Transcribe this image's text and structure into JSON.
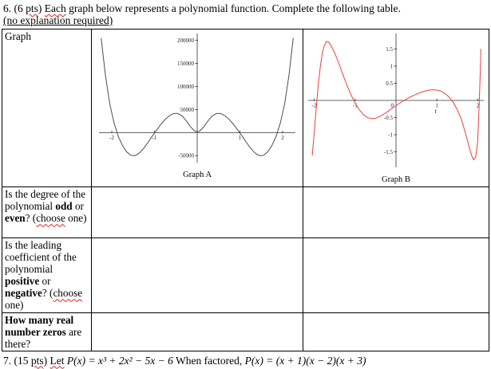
{
  "colors": {
    "graph_a_curve": "#4d4d4d",
    "graph_b_curve": "#e94040",
    "axis": "#333333",
    "squiggle": "#e02020"
  },
  "question6": {
    "s1": "6. (6 ",
    "s2": "pts",
    "s3": ") ",
    "s4": "Each",
    "s5": " graph below represents a polynomial function. Complete the following table.",
    "s6": "(no explanation required)"
  },
  "table": {
    "row_graph_label": "Graph",
    "row_degree": {
      "s1": "Is the degree of the polynomial ",
      "s2": "odd",
      "s3": " or ",
      "s4": "even",
      "s5": "? (",
      "s6": "choose",
      "s7": " one)"
    },
    "row_coeff": {
      "s1": "Is the leading coefficient of the polynomial ",
      "s2": "positive",
      "s3": " or ",
      "s4": "negative",
      "s5": "? (",
      "s6": "choose",
      "s7": " one)"
    },
    "row_zeros": {
      "s1": "How many real number zeros",
      "s2": " are there?"
    }
  },
  "question7": {
    "s1": "7. (15 ",
    "s2": "pts",
    "s3": ") ",
    "s4": "Let",
    "s5": " ",
    "math1": "P(x) = x³ + 2x² − 5x − 6",
    "s6": " When factored, ",
    "math2": "P(x) = (x + 1)(x − 2)(x + 3)"
  },
  "chart_data": [
    {
      "type": "line",
      "title": "Graph A",
      "xlabel": "",
      "ylabel": "",
      "xlim": [
        -2.3,
        2.3
      ],
      "ylim": [
        -65000,
        215000
      ],
      "grid": false,
      "xticks": [
        {
          "v": -2,
          "label": "-2"
        },
        {
          "v": -1,
          "label": "-1"
        },
        {
          "v": 1,
          "label": "1"
        },
        {
          "v": 2,
          "label": "2"
        }
      ],
      "yticks": [
        {
          "v": 200000,
          "label": "200000"
        },
        {
          "v": 150000,
          "label": "150000"
        },
        {
          "v": 100000,
          "label": "100000"
        },
        {
          "v": 50000,
          "label": "50000"
        },
        {
          "v": -50000,
          "label": "-50000"
        }
      ],
      "color": "#4d4d4d",
      "points": [
        [
          -2.25,
          205000
        ],
        [
          -2.15,
          125000
        ],
        [
          -2.05,
          63000
        ],
        [
          -1.95,
          22000
        ],
        [
          -1.85,
          -8000
        ],
        [
          -1.75,
          -28000
        ],
        [
          -1.65,
          -42000
        ],
        [
          -1.55,
          -49500
        ],
        [
          -1.45,
          -50000
        ],
        [
          -1.35,
          -44000
        ],
        [
          -1.25,
          -33500
        ],
        [
          -1.15,
          -21000
        ],
        [
          -1.05,
          -7500
        ],
        [
          -0.95,
          5500
        ],
        [
          -0.85,
          18000
        ],
        [
          -0.75,
          28500
        ],
        [
          -0.65,
          36500
        ],
        [
          -0.55,
          41500
        ],
        [
          -0.45,
          41500
        ],
        [
          -0.35,
          36000
        ],
        [
          -0.25,
          25000
        ],
        [
          -0.15,
          12000
        ],
        [
          -0.05,
          2500
        ],
        [
          0.05,
          2500
        ],
        [
          0.15,
          12000
        ],
        [
          0.25,
          25000
        ],
        [
          0.35,
          36000
        ],
        [
          0.45,
          41500
        ],
        [
          0.55,
          41500
        ],
        [
          0.65,
          36500
        ],
        [
          0.75,
          28500
        ],
        [
          0.85,
          18000
        ],
        [
          0.95,
          5500
        ],
        [
          1.05,
          -7500
        ],
        [
          1.15,
          -21000
        ],
        [
          1.25,
          -33500
        ],
        [
          1.35,
          -44000
        ],
        [
          1.45,
          -50000
        ],
        [
          1.55,
          -49500
        ],
        [
          1.65,
          -42000
        ],
        [
          1.75,
          -28000
        ],
        [
          1.85,
          -8000
        ],
        [
          1.95,
          22000
        ],
        [
          2.05,
          63000
        ],
        [
          2.15,
          125000
        ],
        [
          2.25,
          205000
        ]
      ]
    },
    {
      "type": "line",
      "title": "Graph B",
      "xlabel": "t",
      "ylabel": "",
      "xlim": [
        -2.15,
        2.15
      ],
      "ylim": [
        -1.95,
        1.95
      ],
      "grid": false,
      "xticks": [
        {
          "v": -2,
          "label": "-2"
        },
        {
          "v": -1,
          "label": "-1"
        },
        {
          "v": 0,
          "label": "0"
        },
        {
          "v": 1,
          "label": "1"
        },
        {
          "v": 2,
          "label": "2"
        }
      ],
      "yticks": [
        {
          "v": 1.5,
          "label": "1.5"
        },
        {
          "v": 1,
          "label": "1"
        },
        {
          "v": 0.5,
          "label": "0.5"
        },
        {
          "v": -0.5,
          "label": "-0.5"
        },
        {
          "v": -1,
          "label": "-1"
        },
        {
          "v": -1.5,
          "label": "-1.5"
        }
      ],
      "color": "#e94040",
      "axis_var_label": "t",
      "axis_var_x": 0.95,
      "points": [
        [
          -2.05,
          -1.6
        ],
        [
          -2.0,
          -0.9
        ],
        [
          -1.95,
          -0.2
        ],
        [
          -1.9,
          0.5
        ],
        [
          -1.85,
          1.0
        ],
        [
          -1.8,
          1.4
        ],
        [
          -1.75,
          1.62
        ],
        [
          -1.7,
          1.72
        ],
        [
          -1.65,
          1.7
        ],
        [
          -1.6,
          1.62
        ],
        [
          -1.5,
          1.38
        ],
        [
          -1.4,
          1.08
        ],
        [
          -1.3,
          0.75
        ],
        [
          -1.2,
          0.44
        ],
        [
          -1.1,
          0.16
        ],
        [
          -1.0,
          -0.08
        ],
        [
          -0.9,
          -0.27
        ],
        [
          -0.8,
          -0.41
        ],
        [
          -0.7,
          -0.5
        ],
        [
          -0.6,
          -0.53
        ],
        [
          -0.5,
          -0.52
        ],
        [
          -0.4,
          -0.47
        ],
        [
          -0.3,
          -0.4
        ],
        [
          -0.2,
          -0.32
        ],
        [
          -0.1,
          -0.23
        ],
        [
          0.0,
          -0.15
        ],
        [
          0.1,
          -0.07
        ],
        [
          0.2,
          0.0
        ],
        [
          0.3,
          0.07
        ],
        [
          0.4,
          0.13
        ],
        [
          0.5,
          0.18
        ],
        [
          0.6,
          0.23
        ],
        [
          0.7,
          0.27
        ],
        [
          0.8,
          0.3
        ],
        [
          0.9,
          0.31
        ],
        [
          1.0,
          0.3
        ],
        [
          1.1,
          0.27
        ],
        [
          1.2,
          0.2
        ],
        [
          1.3,
          0.1
        ],
        [
          1.4,
          -0.05
        ],
        [
          1.5,
          -0.27
        ],
        [
          1.6,
          -0.55
        ],
        [
          1.7,
          -0.95
        ],
        [
          1.8,
          -1.4
        ],
        [
          1.85,
          -1.6
        ],
        [
          1.9,
          -1.73
        ],
        [
          1.95,
          -1.65
        ],
        [
          2.0,
          -1.2
        ],
        [
          2.03,
          -0.3
        ],
        [
          2.06,
          0.7
        ],
        [
          2.08,
          1.5
        ]
      ]
    }
  ]
}
